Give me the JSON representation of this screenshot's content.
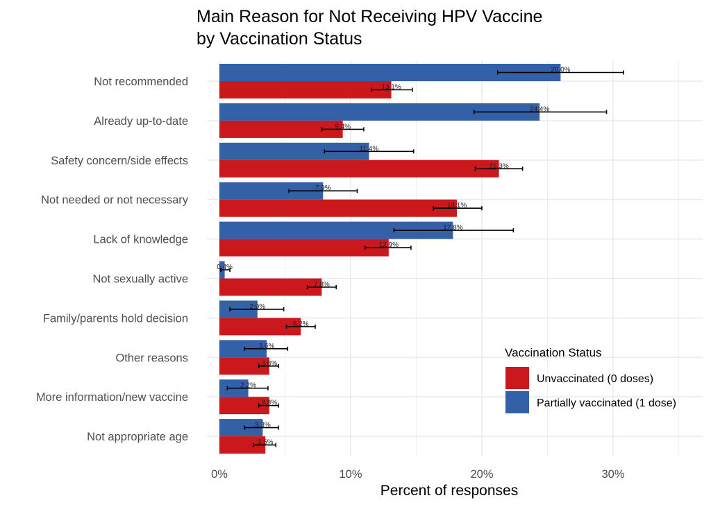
{
  "chart_data": {
    "type": "bar",
    "orientation": "horizontal",
    "title": "Main Reason for Not Receiving HPV Vaccine",
    "subtitle": "by Vaccination Status",
    "xlabel": "Percent of responses",
    "ylabel": "",
    "xlim": [
      0,
      37
    ],
    "x_ticks": [
      0,
      10,
      20,
      30
    ],
    "x_tick_labels": [
      "0%",
      "10%",
      "20%",
      "30%"
    ],
    "grid": true,
    "legend": {
      "title": "Vaccination Status",
      "position": "right-bottom"
    },
    "categories": [
      "Not recommended",
      "Already up-to-date",
      "Safety concern/side effects",
      "Not needed or not necessary",
      "Lack of knowledge",
      "Not sexually active",
      "Family/parents hold decision",
      "Other reasons",
      "More information/new vaccine",
      "Not appropriate age"
    ],
    "series": [
      {
        "name": "Unvaccinated (0 doses)",
        "color": "#CB181D",
        "values": [
          13.1,
          9.4,
          21.3,
          18.1,
          12.9,
          7.8,
          6.2,
          3.8,
          3.8,
          3.5
        ],
        "labels": [
          "13.1%",
          "9.4%",
          "21.3%",
          "18.1%",
          "12.9%",
          "7.8%",
          "6.2%",
          "3.8%",
          "3.8%",
          "3.5%"
        ],
        "ci_low": [
          11.6,
          7.8,
          19.5,
          16.3,
          11.1,
          6.7,
          5.1,
          3.0,
          3.0,
          2.6
        ],
        "ci_high": [
          14.7,
          11.0,
          23.1,
          20.0,
          14.6,
          8.9,
          7.3,
          4.5,
          4.5,
          4.3
        ]
      },
      {
        "name": "Partially vaccinated (1 dose)",
        "color": "#3460A8",
        "values": [
          26.0,
          24.4,
          11.4,
          7.9,
          17.8,
          0.4,
          2.9,
          3.6,
          2.2,
          3.3
        ],
        "labels": [
          "26.0%",
          "24.4%",
          "11.4%",
          "7.9%",
          "17.8%",
          "0.4%",
          "2.9%",
          "3.6%",
          "2.2%",
          "3.3%"
        ],
        "ci_low": [
          21.2,
          19.4,
          8.0,
          5.3,
          13.3,
          0.1,
          0.8,
          1.9,
          0.6,
          1.9
        ],
        "ci_high": [
          30.8,
          29.5,
          14.8,
          10.5,
          22.4,
          0.8,
          4.9,
          5.2,
          3.7,
          4.5
        ]
      }
    ]
  }
}
